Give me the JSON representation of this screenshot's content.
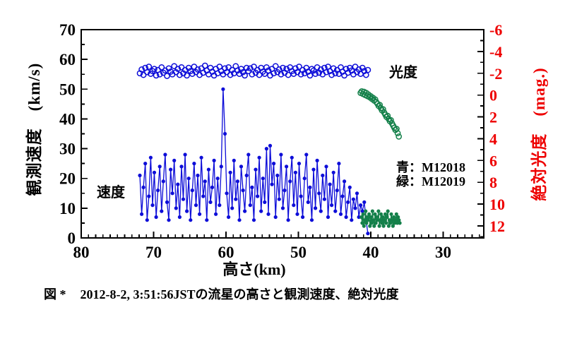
{
  "caption": {
    "prefix": "図 *",
    "text": "2012-8-2, 3:51:56JSTの流星の高さと観測速度、絶対光度"
  },
  "colors": {
    "blue": "#0d0dd8",
    "green": "#14804a",
    "red": "#ee0000",
    "black": "#000000"
  },
  "chart_data": {
    "type": "scatter",
    "xlabel": "高さ(km)",
    "ylabel_left": "観測速度　(km/s)",
    "ylabel_right": "絶対光度　(mag.)",
    "legend": {
      "lines": [
        "青：M12018",
        "緑：M12019"
      ]
    },
    "annotations": [
      {
        "text": "光度"
      },
      {
        "text": "速度"
      }
    ],
    "x_axis": {
      "min": 24.39,
      "max": 80,
      "reversed": true,
      "major_ticks": [
        80,
        70,
        60,
        50,
        40,
        30
      ],
      "minor_step": 1
    },
    "y_left": {
      "min": 0,
      "max": 70,
      "major_ticks": [
        0,
        10,
        20,
        30,
        40,
        50,
        60,
        70
      ],
      "minor_step": 5
    },
    "y_right": {
      "min": -6,
      "max": 13.1,
      "major_ticks": [
        -6,
        -4,
        -2,
        0,
        2,
        4,
        6,
        8,
        10,
        12
      ],
      "minor_step": 1
    },
    "grid": false,
    "series": [
      {
        "name": "M12018-magnitude",
        "label": "光度 M12018",
        "axis": "right",
        "marker": "open-circle",
        "line": false,
        "color_key": "blue",
        "h0": 71.9,
        "dh": -0.25,
        "values": [
          -2.0,
          -2.35,
          -1.85,
          -2.5,
          -2.1,
          -2.6,
          -1.95,
          -2.2,
          -2.4,
          -1.8,
          -2.3,
          -1.9,
          -2.55,
          -2.05,
          -2.25,
          -1.75,
          -2.45,
          -2.15,
          -1.9,
          -2.65,
          -2.1,
          -2.4,
          -1.85,
          -2.55,
          -2.0,
          -2.3,
          -1.8,
          -2.5,
          -2.2,
          -1.95,
          -2.6,
          -2.1,
          -2.35,
          -1.85,
          -2.45,
          -2.05,
          -2.7,
          -2.25,
          -1.9,
          -2.5,
          -2.15,
          -1.8,
          -2.4,
          -2.0,
          -2.6,
          -2.2,
          -1.9,
          -2.45,
          -2.1,
          -2.55,
          -1.85,
          -2.3,
          -2.0,
          -2.65,
          -2.25,
          -1.95,
          -2.4,
          -2.1,
          -1.8,
          -2.5,
          -2.2,
          -2.45,
          -1.9,
          -2.6,
          -2.05,
          -2.3,
          -1.85,
          -2.5,
          -2.15,
          -1.95,
          -2.55,
          -2.25,
          -1.8,
          -2.4,
          -2.0,
          -2.65,
          -2.1,
          -2.35,
          -1.9,
          -2.5,
          -2.05,
          -2.4,
          -1.85,
          -2.55,
          -2.2,
          -1.95,
          -2.45,
          -2.1,
          -2.6,
          -1.9,
          -2.3,
          -2.0,
          -2.5,
          -2.15,
          -1.8,
          -2.4,
          -2.25,
          -1.95,
          -2.55,
          -2.05,
          -2.35,
          -1.9,
          -2.5,
          -2.1,
          -2.6,
          -2.2,
          -1.85,
          -2.45,
          -2.0,
          -2.3,
          -1.95,
          -2.55,
          -2.15,
          -1.8,
          -2.4,
          -2.05,
          -2.5,
          -2.25,
          -1.9,
          -2.6,
          -2.1,
          -2.35,
          -1.95,
          -2.5,
          -2.2,
          -1.85,
          -2.3
        ]
      },
      {
        "name": "M12018-velocity",
        "label": "速度 M12018",
        "axis": "left",
        "marker": "filled-circle",
        "line": true,
        "color_key": "blue",
        "h0": 71.9,
        "dh": -0.25,
        "values": [
          21,
          8,
          17,
          25,
          6,
          14,
          27,
          11,
          22,
          7,
          16,
          24,
          9,
          19,
          28,
          12,
          6,
          23,
          15,
          26,
          10,
          18,
          7,
          24,
          13,
          28,
          9,
          20,
          6,
          16,
          25,
          11,
          21,
          8,
          27,
          14,
          19,
          6,
          23,
          12,
          17,
          26,
          8,
          20,
          11,
          24,
          50,
          35,
          15,
          7,
          22,
          10,
          26,
          13,
          19,
          6,
          24,
          16,
          9,
          21,
          28,
          11,
          17,
          6,
          23,
          14,
          27,
          9,
          20,
          12,
          30,
          8,
          31,
          18,
          25,
          7,
          21,
          13,
          28,
          10,
          16,
          24,
          6,
          19,
          27,
          11,
          22,
          8,
          25,
          14,
          7,
          20,
          28,
          12,
          17,
          6,
          23,
          10,
          26,
          15,
          9,
          21,
          13,
          24,
          7,
          18,
          11,
          22,
          9,
          16,
          25,
          8,
          14,
          19,
          7,
          12,
          17,
          6,
          13,
          10,
          15,
          7,
          11,
          9,
          12,
          6,
          1.5
        ]
      },
      {
        "name": "M12019-magnitude",
        "label": "光度 M12019",
        "axis": "right",
        "marker": "open-circle",
        "line": false,
        "color_key": "green",
        "h0": 41.4,
        "dh": -0.155,
        "values": [
          -0.2,
          -0.35,
          -0.1,
          -0.3,
          0.0,
          -0.2,
          0.1,
          -0.05,
          0.2,
          0.1,
          0.35,
          0.25,
          0.5,
          0.4,
          0.65,
          0.8,
          1.0,
          0.9,
          1.2,
          1.4,
          1.3,
          1.6,
          1.8,
          2.0,
          1.9,
          2.2,
          2.4,
          2.3,
          2.6,
          2.8,
          3.0,
          3.2,
          3.1,
          3.5,
          3.8
        ]
      },
      {
        "name": "M12019-velocity",
        "label": "速度 M12019",
        "axis": "left",
        "marker": "filled-circle",
        "line": true,
        "color_key": "green",
        "h0": 41.3,
        "dh": -0.118,
        "values": [
          7,
          5,
          8,
          4,
          6,
          9,
          5,
          7,
          6,
          8,
          4,
          7,
          5,
          9,
          6,
          4,
          8,
          5,
          7,
          6,
          9,
          4,
          6,
          8,
          5,
          7,
          4,
          6,
          8,
          5,
          7,
          9,
          4,
          6,
          5,
          8,
          6,
          4,
          7,
          5,
          6,
          8,
          5,
          7,
          6,
          5
        ]
      }
    ]
  }
}
